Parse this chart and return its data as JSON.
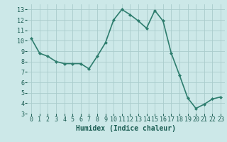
{
  "x": [
    0,
    1,
    2,
    3,
    4,
    5,
    6,
    7,
    8,
    9,
    10,
    11,
    12,
    13,
    14,
    15,
    16,
    17,
    18,
    19,
    20,
    21,
    22,
    23
  ],
  "y": [
    10.2,
    8.8,
    8.5,
    8.0,
    7.8,
    7.8,
    7.8,
    7.3,
    8.5,
    9.8,
    12.0,
    13.0,
    12.5,
    11.9,
    11.2,
    12.9,
    11.9,
    8.8,
    6.7,
    4.5,
    3.5,
    3.9,
    4.4,
    4.6
  ],
  "line_color": "#2e7d6e",
  "marker": "D",
  "marker_size": 2.0,
  "bg_color": "#cce8e8",
  "grid_color": "#aacccc",
  "xlabel": "Humidex (Indice chaleur)",
  "ylim": [
    3,
    13.5
  ],
  "xlim": [
    -0.5,
    23.5
  ],
  "yticks": [
    3,
    4,
    5,
    6,
    7,
    8,
    9,
    10,
    11,
    12,
    13
  ],
  "xticks": [
    0,
    1,
    2,
    3,
    4,
    5,
    6,
    7,
    8,
    9,
    10,
    11,
    12,
    13,
    14,
    15,
    16,
    17,
    18,
    19,
    20,
    21,
    22,
    23
  ],
  "tick_label_color": "#1a5c52",
  "xlabel_fontsize": 7,
  "tick_fontsize": 6,
  "line_width": 1.2
}
